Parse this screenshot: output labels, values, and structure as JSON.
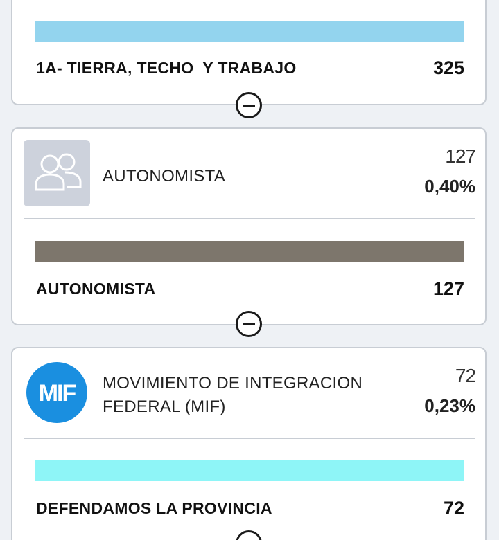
{
  "cards": [
    {
      "list": {
        "name": "1A- TIERRA, TECHO  Y TRABAJO",
        "votes": "325",
        "bar_color": "#93d4ee"
      }
    },
    {
      "party": {
        "name": "AUTONOMISTA",
        "votes": "127",
        "percent": "0,40%",
        "logo_icon": "users-placeholder-icon"
      },
      "list": {
        "name": "AUTONOMISTA",
        "votes": "127",
        "bar_color": "#7d766c"
      }
    },
    {
      "party": {
        "name": "MOVIMIENTO DE INTEGRACION FEDERAL (MIF)",
        "votes": "72",
        "percent": "0,23%",
        "logo_icon": "mif-logo",
        "logo_text": "MIF",
        "logo_color": "#1a8fe0"
      },
      "list": {
        "name": "DEFENDAMOS LA PROVINCIA",
        "votes": "72",
        "bar_color": "#8ef5f7"
      }
    }
  ]
}
